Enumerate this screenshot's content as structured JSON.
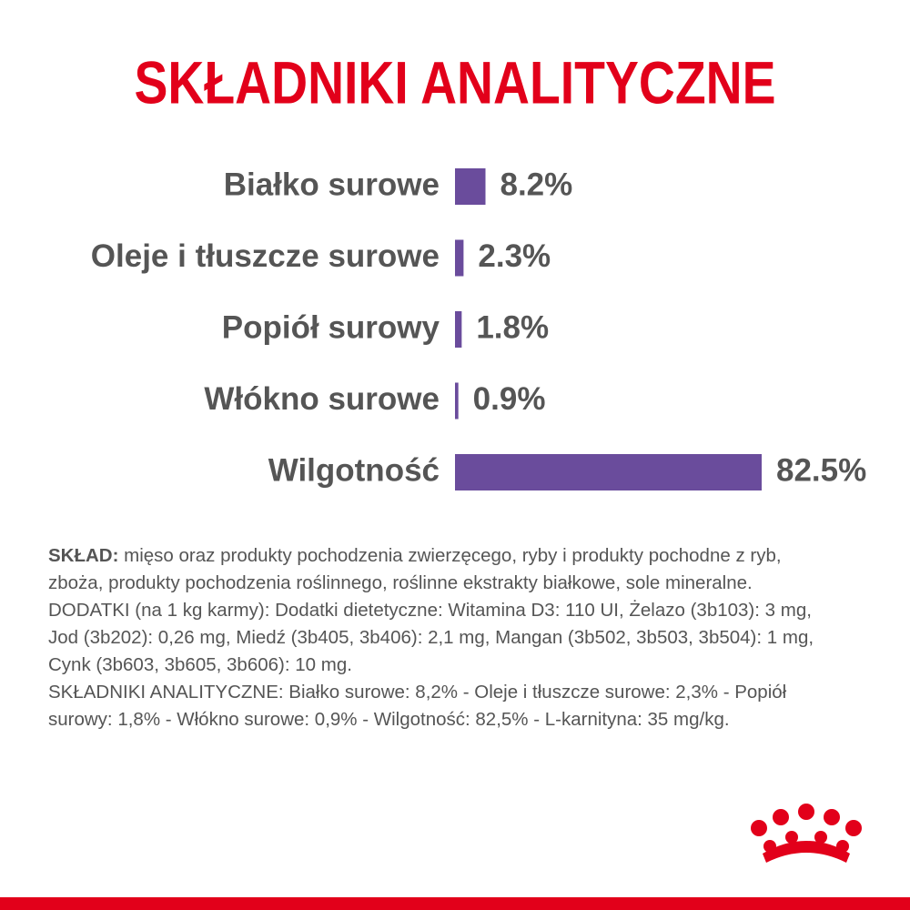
{
  "chart_data": {
    "type": "bar",
    "orientation": "horizontal",
    "title": "SKŁADNIKI ANALITYCZNE",
    "categories": [
      "Białko surowe",
      "Oleje i tłuszcze surowe",
      "Popiół surowy",
      "Włókno surowe",
      "Wilgotność"
    ],
    "values": [
      8.2,
      2.3,
      1.8,
      0.9,
      82.5
    ],
    "value_labels": [
      "8.2%",
      "2.3%",
      "1.8%",
      "0.9%",
      "82.5%"
    ],
    "color": "#6a4c9c"
  },
  "composition": {
    "label": "SKŁAD:",
    "text": "mięso oraz produkty pochodzenia zwierzęcego, ryby i produkty pochodne z ryb, zboża, produkty pochodzenia roślinnego, roślinne ekstrakty białkowe, sole mineralne.",
    "additives": "DODATKI (na 1 kg karmy): Dodatki dietetyczne: Witamina D3: 110 UI, Żelazo (3b103): 3 mg, Jod (3b202): 0,26 mg, Miedź (3b405, 3b406): 2,1 mg, Mangan (3b502, 3b503, 3b504): 1 mg, Cynk (3b603, 3b605, 3b606): 10 mg.",
    "analytical": "SKŁADNIKI ANALITYCZNE: Białko surowe: 8,2% - Oleje i tłuszcze surowe: 2,3% - Popiół surowy: 1,8% - Włókno surowe: 0,9% - Wilgotność: 82,5% - L-karnityna: 35 mg/kg."
  }
}
